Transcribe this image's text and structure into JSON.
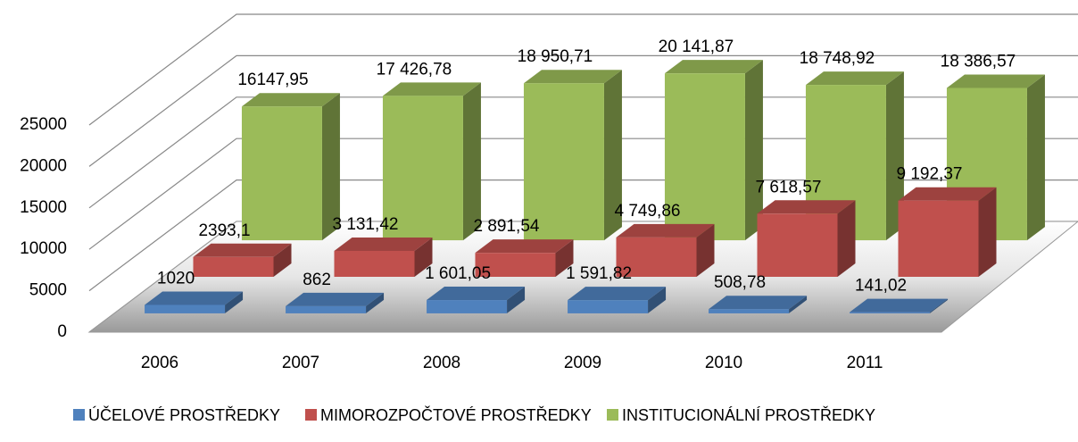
{
  "chart_data": {
    "type": "bar3d",
    "categories": [
      "2006",
      "2007",
      "2008",
      "2009",
      "2010",
      "2011"
    ],
    "series": [
      {
        "name": "ÚČELOVÉ PROSTŘEDKY",
        "color": "#4f81bd",
        "values": [
          1020,
          862,
          1601.05,
          1591.82,
          508.78,
          141.02
        ],
        "value_labels": [
          "1020",
          "862",
          "1 601,05",
          "1 591,82",
          "508,78",
          "141,02"
        ]
      },
      {
        "name": "MIMOROZPOČTOVÉ PROSTŘEDKY",
        "color": "#c0504d",
        "values": [
          2393.1,
          3131.42,
          2891.54,
          4749.86,
          7618.57,
          9192.37
        ],
        "value_labels": [
          "2393,1",
          "3 131,42",
          "2 891,54",
          "4 749,86",
          "7 618,57",
          "9 192,37"
        ]
      },
      {
        "name": "INSTITUCIONÁLNÍ  PROSTŘEDKY",
        "color": "#9bbb59",
        "values": [
          16147.95,
          17426.78,
          18950.71,
          20141.87,
          18748.92,
          18386.57
        ],
        "value_labels": [
          "16147,95",
          "17 426,78",
          "18 950,71",
          "20 141,87",
          "18 748,92",
          "18 386,57"
        ]
      }
    ],
    "ylim": [
      0,
      25000
    ],
    "yticks": [
      0,
      5000,
      10000,
      15000,
      20000,
      25000
    ],
    "grid": true,
    "legend": "bottom"
  }
}
